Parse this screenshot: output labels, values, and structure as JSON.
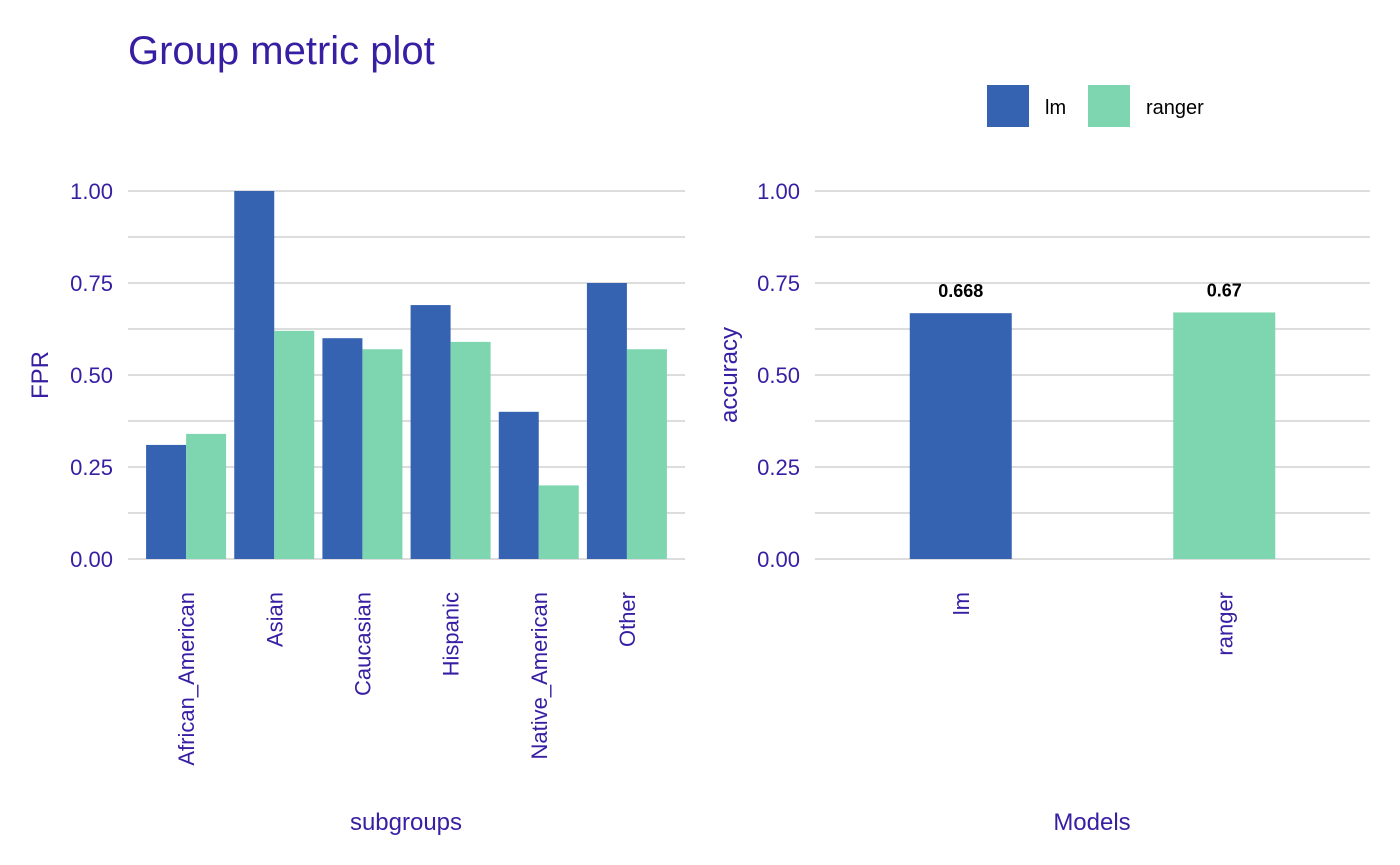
{
  "title": "Group metric plot",
  "colors": {
    "text": "#371ea3",
    "grid": "#dddddd",
    "lm": "#3563b2",
    "ranger": "#7dd6af",
    "data_label": "#000000"
  },
  "legend": {
    "placement": "top-right",
    "items": [
      {
        "name": "lm",
        "color": "#3563b2"
      },
      {
        "name": "ranger",
        "color": "#7dd6af"
      }
    ]
  },
  "chart_data": [
    {
      "type": "bar",
      "categories": [
        "African_American",
        "Asian",
        "Caucasian",
        "Hispanic",
        "Native_American",
        "Other"
      ],
      "series": [
        {
          "name": "lm",
          "values": [
            0.31,
            1.0,
            0.6,
            0.69,
            0.4,
            0.75
          ]
        },
        {
          "name": "ranger",
          "values": [
            0.34,
            0.62,
            0.57,
            0.59,
            0.2,
            0.57
          ]
        }
      ],
      "xlabel": "subgroups",
      "ylabel": "FPR",
      "ylim": [
        0,
        1
      ],
      "yticks": [
        "0.00",
        "0.25",
        "0.50",
        "0.75",
        "1.00"
      ],
      "grid": true
    },
    {
      "type": "bar",
      "categories": [
        "lm",
        "ranger"
      ],
      "values": [
        0.668,
        0.67
      ],
      "data_labels": [
        "0.668",
        "0.67"
      ],
      "xlabel": "Models",
      "ylabel": "accuracy",
      "ylim": [
        0,
        1
      ],
      "yticks": [
        "0.00",
        "0.25",
        "0.50",
        "0.75",
        "1.00"
      ],
      "grid": true
    }
  ]
}
